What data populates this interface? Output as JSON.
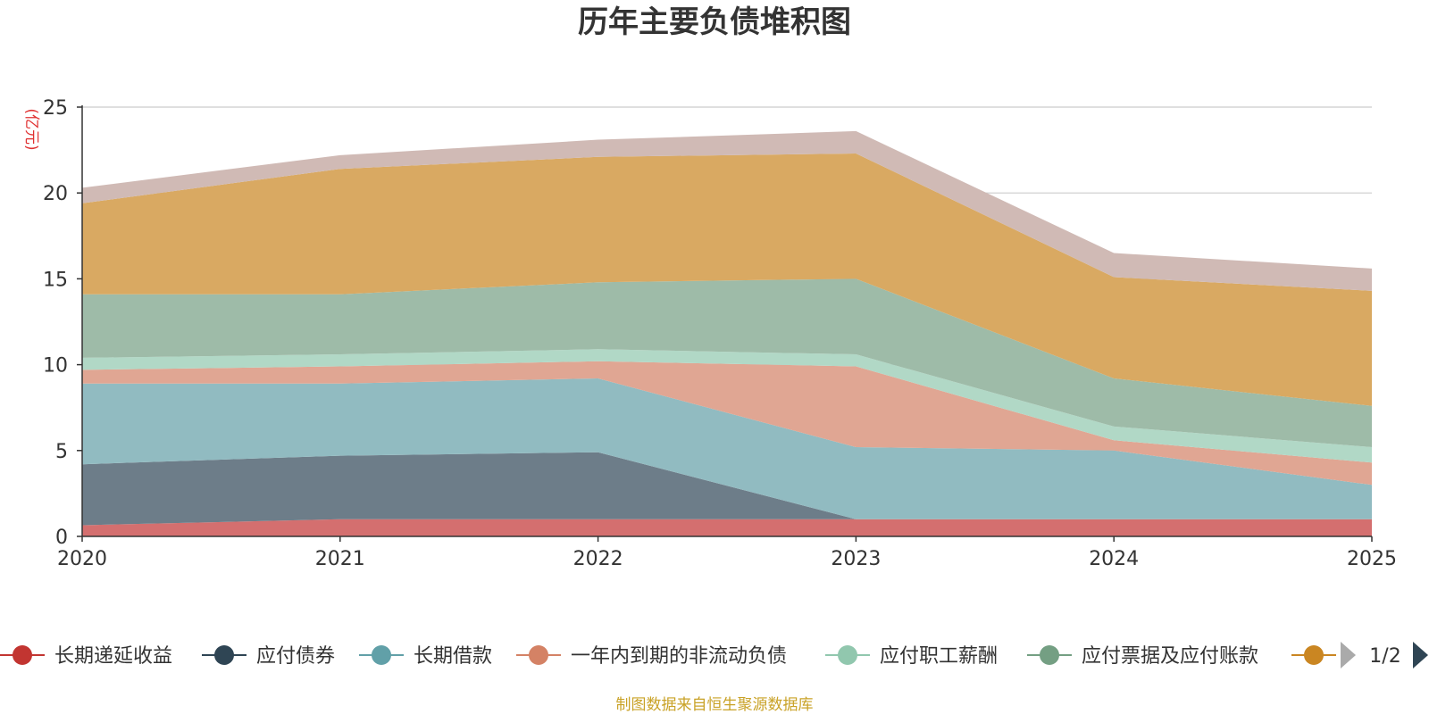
{
  "chart_data": {
    "type": "area",
    "stacked": true,
    "title": "历年主要负债堆积图",
    "ylabel": "(亿元)",
    "xlabel": "",
    "ylim": [
      0,
      25
    ],
    "yticks": [
      0,
      5,
      10,
      15,
      20,
      25
    ],
    "grid": true,
    "categories": [
      "2020",
      "2021",
      "2022",
      "2023",
      "2024",
      "2025"
    ],
    "series": [
      {
        "name": "长期递延收益",
        "color": "#c23531",
        "area_color": "#d46f6f",
        "values": [
          0.65,
          1.0,
          1.0,
          1.0,
          1.0,
          1.0
        ]
      },
      {
        "name": "应付债券",
        "color": "#2f4554",
        "area_color": "#6d7d89",
        "values": [
          3.55,
          3.7,
          3.9,
          0,
          0,
          0
        ]
      },
      {
        "name": "长期借款",
        "color": "#61a0a8",
        "area_color": "#91bbc1",
        "values": [
          4.7,
          4.2,
          4.3,
          4.2,
          4.0,
          2.0
        ]
      },
      {
        "name": "一年内到期的非流动负债",
        "color": "#d48265",
        "area_color": "#e0a693",
        "values": [
          0.8,
          1.0,
          1.0,
          4.7,
          0.6,
          1.3
        ]
      },
      {
        "name": "应付职工薪酬",
        "color": "#91c7ae",
        "area_color": "#b1d8c6",
        "values": [
          0.7,
          0.7,
          0.7,
          0.7,
          0.8,
          0.9
        ]
      },
      {
        "name": "应付票据及应付账款",
        "color": "#749f83",
        "area_color": "#9ebba8",
        "values": [
          3.7,
          3.5,
          3.9,
          4.4,
          2.8,
          2.4
        ]
      },
      {
        "name": "",
        "color": "#ca8622",
        "area_color": "#d9a962",
        "values": [
          5.3,
          7.3,
          7.3,
          7.3,
          5.9,
          6.7
        ]
      },
      {
        "name": "",
        "color": "#bda29a",
        "area_color": "#d0bab5",
        "values": [
          0.9,
          0.8,
          1.0,
          1.3,
          1.4,
          1.3
        ]
      }
    ],
    "legend": {
      "position": "bottom",
      "page_label": "1/2"
    },
    "source": "制图数据来自恒生聚源数据库"
  }
}
